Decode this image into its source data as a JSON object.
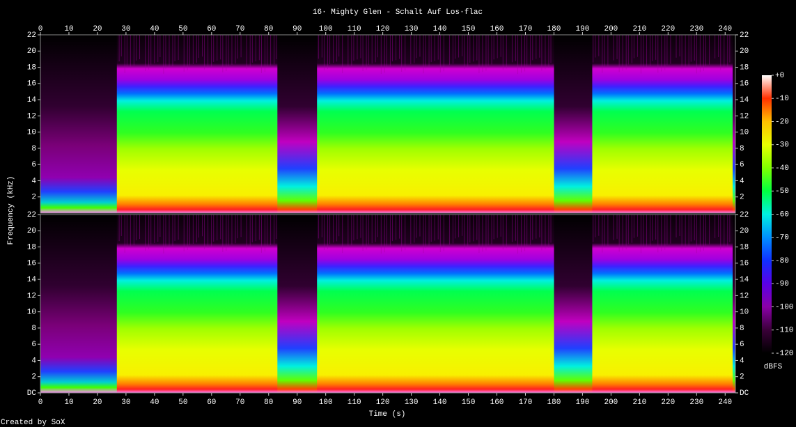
{
  "chart_data": {
    "type": "spectrogram",
    "title": "16· Mighty Glen - Schalt Auf Los·flac",
    "xlabel": "Time (s)",
    "ylabel": "Frequency (kHz)",
    "xlim": [
      0,
      243.6
    ],
    "xticks": [
      0,
      10,
      20,
      30,
      40,
      50,
      60,
      70,
      80,
      90,
      100,
      110,
      120,
      130,
      140,
      150,
      160,
      170,
      180,
      190,
      200,
      210,
      220,
      230,
      240
    ],
    "ylim": [
      0,
      22
    ],
    "channels": [
      {
        "yticks": [
          2,
          4,
          6,
          8,
          10,
          12,
          14,
          16,
          18,
          20,
          22
        ]
      },
      {
        "yticks": [
          {
            "value": 0,
            "label": "DC"
          },
          2,
          4,
          6,
          8,
          10,
          12,
          14,
          16,
          18,
          20,
          22
        ]
      }
    ],
    "zlim": [
      -120,
      0
    ],
    "zticks": [
      {
        "value": 0,
        "label": "+0"
      },
      -10,
      -20,
      -30,
      -40,
      -50,
      -60,
      -70,
      -80,
      -90,
      -100,
      -110,
      -120
    ],
    "zlabel": "dBFS",
    "colormap": [
      "#000000",
      "#3a0038",
      "#8a00a8",
      "#5a00e8",
      "#1030ff",
      "#0090ff",
      "#00f0e0",
      "#00ff40",
      "#80ff00",
      "#e8ff00",
      "#ffc000",
      "#ff3000",
      "#ffffff"
    ],
    "footer": "Created by SoX"
  }
}
